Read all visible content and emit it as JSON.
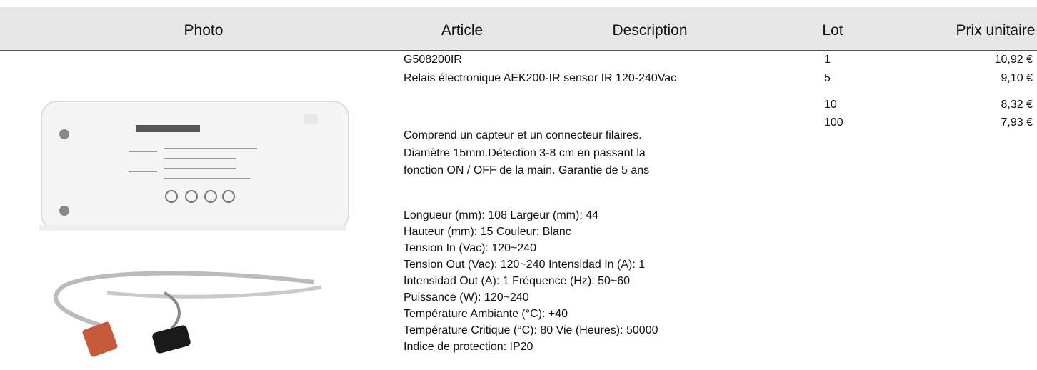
{
  "header": {
    "columns": [
      "Photo",
      "Article",
      "Description",
      "Lot",
      "Prix unitaire"
    ]
  },
  "article": {
    "code": "G508200IR",
    "name": "Relais électronique AEK200-IR sensor IR 120-240Vac",
    "summary": [
      "Comprend un capteur et un connecteur filaires.",
      "Diamètre 15mm.Détection 3-8 cm en passant la",
      "fonction ON / OFF de la main. Garantie de 5 ans"
    ],
    "specs": [
      "Longueur (mm): 108 Largeur (mm): 44",
      "Hauteur (mm): 15 Couleur: Blanc",
      "Tension In (Vac): 120~240",
      "Tension Out (Vac): 120~240 Intensidad In (A): 1",
      "Intensidad Out (A): 1 Fréquence (Hz): 50~60",
      "Puissance (W): 120~240",
      "Température Ambiante (°C): +40",
      "Température Critique (°C): 80 Vie (Heures): 50000",
      "Indice de protection: IP20"
    ]
  },
  "prices": [
    {
      "lot": "1",
      "price": "10,92 €"
    },
    {
      "lot": "5",
      "price": "9,10 €"
    },
    {
      "lot": "10",
      "price": "8,32 €"
    },
    {
      "lot": "100",
      "price": "7,93 €"
    }
  ]
}
